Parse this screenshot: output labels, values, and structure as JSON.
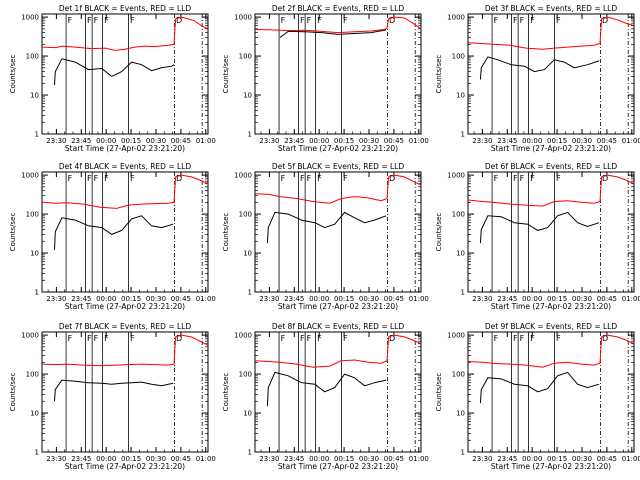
{
  "common": {
    "ylabel": "Counts/sec",
    "xlabel": "Start Time (27-Apr-02 23:21:20)",
    "x_tick_labels": [
      "23:30",
      "23:45",
      "00:00",
      "00:15",
      "00:30",
      "00:45",
      "01:00"
    ],
    "x_tick_minutes": [
      8.67,
      23.67,
      38.67,
      53.67,
      68.67,
      83.67,
      98.67
    ],
    "y_tick_labels": [
      "1",
      "10",
      "100",
      "1000"
    ],
    "y_tick_values": [
      1,
      10,
      100,
      1000
    ],
    "xlim_minutes_from_start": [
      0,
      100
    ],
    "ylim": [
      1,
      1200
    ],
    "y_scale": "log",
    "marker_letters": [
      "F",
      "F",
      "F",
      "F",
      "F",
      "D"
    ],
    "marker_minutes": [
      14.5,
      26.2,
      30.2,
      36.5,
      52.1,
      79.8
    ],
    "marker_dash_dot_minutes": [
      79.8,
      96.5
    ],
    "colors": {
      "events": "#000000",
      "lld": "#ff0000"
    }
  },
  "chart_data": [
    {
      "type": "line",
      "title": "Det 1f BLACK = Events, RED = LLD",
      "series": [
        {
          "color": "#ff0000",
          "x": [
            0,
            8.5,
            12,
            20,
            30,
            38,
            44,
            50,
            56,
            62,
            68,
            76,
            79.5,
            80.5,
            84,
            88,
            92,
            96,
            100
          ],
          "y": [
            170,
            165,
            180,
            170,
            155,
            160,
            140,
            150,
            170,
            180,
            175,
            190,
            200,
            900,
            1000,
            900,
            800,
            600,
            500
          ]
        },
        {
          "color": "#000000",
          "x": [
            7.5,
            8,
            12,
            20,
            28,
            36,
            42,
            48,
            54,
            60,
            66,
            72,
            78,
            79.5
          ],
          "y": [
            18,
            40,
            85,
            70,
            45,
            48,
            30,
            40,
            70,
            60,
            42,
            50,
            55,
            60
          ]
        }
      ]
    },
    {
      "type": "line",
      "title": "Det 2f BLACK = Events, RED = LLD",
      "series": [
        {
          "color": "#ff0000",
          "x": [
            0,
            10,
            20,
            30,
            40,
            50,
            60,
            70,
            78,
            79.5,
            80.5,
            84,
            90,
            95,
            100
          ],
          "y": [
            480,
            470,
            450,
            460,
            430,
            400,
            420,
            440,
            480,
            520,
            900,
            1000,
            950,
            700,
            500
          ]
        },
        {
          "color": "#000000",
          "x": [
            15,
            20,
            30,
            40,
            50,
            60,
            70,
            79
          ],
          "y": [
            300,
            430,
            420,
            400,
            360,
            380,
            400,
            470
          ]
        }
      ]
    },
    {
      "type": "line",
      "title": "Det 3f BLACK = Events, RED = LLD",
      "series": [
        {
          "color": "#ff0000",
          "x": [
            0,
            8.5,
            15,
            25,
            35,
            45,
            52,
            60,
            68,
            76,
            79.5,
            80.5,
            84,
            90,
            95,
            100
          ],
          "y": [
            220,
            210,
            200,
            190,
            160,
            150,
            160,
            170,
            180,
            190,
            210,
            900,
            1000,
            850,
            700,
            600
          ]
        },
        {
          "color": "#000000",
          "x": [
            7.5,
            8,
            12,
            18,
            26,
            34,
            40,
            46,
            52,
            58,
            64,
            72,
            79
          ],
          "y": [
            25,
            50,
            95,
            80,
            60,
            55,
            40,
            45,
            80,
            70,
            50,
            60,
            75
          ]
        }
      ]
    },
    {
      "type": "line",
      "title": "Det 4f BLACK = Events, RED = LLD",
      "series": [
        {
          "color": "#ff0000",
          "x": [
            0,
            8.5,
            15,
            25,
            35,
            45,
            52,
            60,
            68,
            76,
            79.5,
            80.5,
            84,
            90,
            95,
            100
          ],
          "y": [
            200,
            190,
            195,
            180,
            150,
            140,
            170,
            180,
            185,
            190,
            200,
            900,
            1000,
            900,
            750,
            600
          ]
        },
        {
          "color": "#000000",
          "x": [
            7.5,
            8,
            12,
            20,
            28,
            36,
            42,
            48,
            54,
            60,
            66,
            72,
            79
          ],
          "y": [
            12,
            35,
            80,
            70,
            50,
            45,
            30,
            38,
            75,
            90,
            50,
            45,
            55
          ]
        }
      ]
    },
    {
      "type": "line",
      "title": "Det 5f BLACK = Events, RED = LLD",
      "series": [
        {
          "color": "#ff0000",
          "x": [
            0,
            8.5,
            15,
            25,
            35,
            45,
            52,
            60,
            68,
            76,
            79.5,
            80.5,
            84,
            90,
            95,
            100
          ],
          "y": [
            330,
            320,
            280,
            250,
            210,
            190,
            250,
            280,
            260,
            220,
            250,
            900,
            1000,
            900,
            700,
            550
          ]
        },
        {
          "color": "#000000",
          "x": [
            7.5,
            8,
            12,
            20,
            28,
            36,
            42,
            48,
            54,
            60,
            66,
            72,
            79
          ],
          "y": [
            18,
            45,
            110,
            100,
            70,
            60,
            45,
            55,
            110,
            80,
            60,
            70,
            90
          ]
        }
      ]
    },
    {
      "type": "line",
      "title": "Det 6f BLACK = Events, RED = LLD",
      "series": [
        {
          "color": "#ff0000",
          "x": [
            0,
            8.5,
            15,
            25,
            35,
            45,
            52,
            60,
            68,
            76,
            79.5,
            80.5,
            84,
            90,
            95,
            100
          ],
          "y": [
            230,
            210,
            200,
            180,
            170,
            160,
            210,
            220,
            200,
            190,
            210,
            900,
            1000,
            900,
            750,
            600
          ]
        },
        {
          "color": "#000000",
          "x": [
            7.5,
            8,
            12,
            20,
            28,
            36,
            42,
            48,
            54,
            60,
            66,
            72,
            79
          ],
          "y": [
            18,
            40,
            90,
            85,
            60,
            55,
            38,
            45,
            90,
            110,
            60,
            48,
            60
          ]
        }
      ]
    },
    {
      "type": "line",
      "title": "Det 7f BLACK = Events, RED = LLD",
      "series": [
        {
          "color": "#ff0000",
          "x": [
            0,
            8.5,
            15,
            25,
            35,
            45,
            52,
            60,
            68,
            76,
            79.5,
            80.5,
            84,
            90,
            95,
            100
          ],
          "y": [
            180,
            175,
            180,
            170,
            165,
            170,
            175,
            180,
            175,
            170,
            180,
            900,
            1000,
            900,
            700,
            550
          ]
        },
        {
          "color": "#000000",
          "x": [
            7.5,
            8,
            12,
            20,
            28,
            36,
            42,
            48,
            54,
            60,
            66,
            72,
            79
          ],
          "y": [
            20,
            40,
            70,
            65,
            60,
            58,
            55,
            58,
            60,
            62,
            55,
            50,
            58
          ]
        }
      ]
    },
    {
      "type": "line",
      "title": "Det 8f BLACK = Events, RED = LLD",
      "series": [
        {
          "color": "#ff0000",
          "x": [
            0,
            8.5,
            15,
            25,
            35,
            45,
            52,
            60,
            68,
            76,
            79.5,
            80.5,
            84,
            90,
            95,
            100
          ],
          "y": [
            220,
            210,
            200,
            180,
            150,
            160,
            220,
            230,
            200,
            190,
            220,
            900,
            1000,
            900,
            750,
            600
          ]
        },
        {
          "color": "#000000",
          "x": [
            7.5,
            8,
            12,
            20,
            28,
            36,
            42,
            48,
            54,
            60,
            66,
            72,
            79
          ],
          "y": [
            15,
            45,
            110,
            90,
            60,
            55,
            35,
            45,
            100,
            80,
            50,
            60,
            70
          ]
        }
      ]
    },
    {
      "type": "line",
      "title": "Det 9f BLACK = Events, RED = LLD",
      "series": [
        {
          "color": "#ff0000",
          "x": [
            0,
            8.5,
            15,
            25,
            35,
            45,
            52,
            60,
            68,
            76,
            79.5,
            80.5,
            84,
            90,
            95,
            100
          ],
          "y": [
            210,
            200,
            190,
            180,
            170,
            150,
            190,
            200,
            180,
            170,
            190,
            900,
            1000,
            900,
            750,
            600
          ]
        },
        {
          "color": "#000000",
          "x": [
            7.5,
            8,
            12,
            20,
            28,
            36,
            42,
            48,
            54,
            60,
            66,
            72,
            79
          ],
          "y": [
            18,
            40,
            80,
            75,
            55,
            50,
            35,
            42,
            90,
            110,
            55,
            45,
            55
          ]
        }
      ]
    }
  ]
}
